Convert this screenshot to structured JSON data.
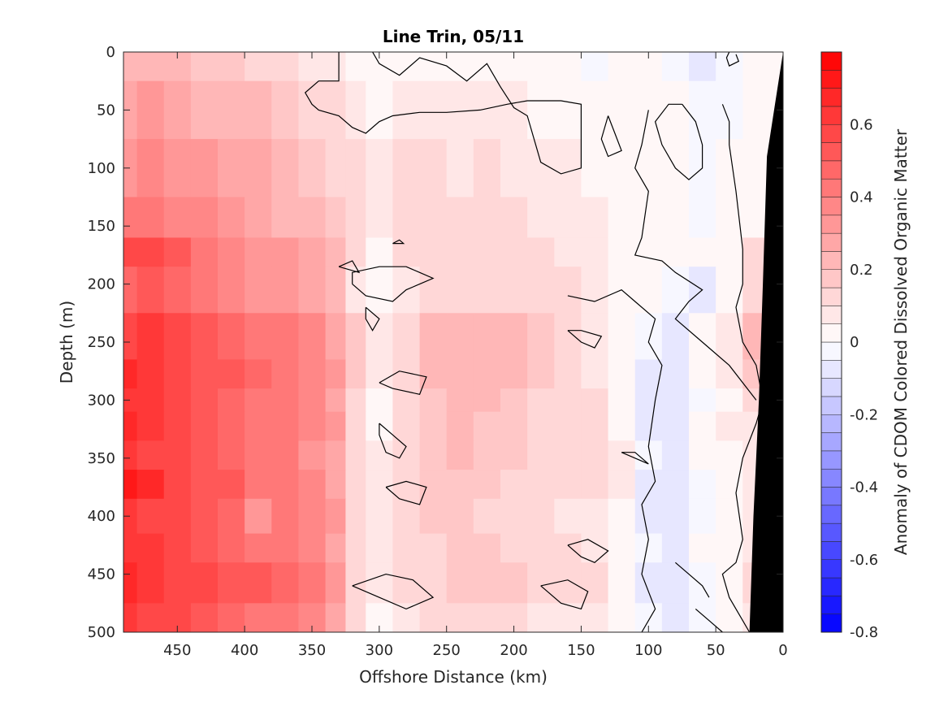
{
  "chart_data": {
    "type": "heatmap",
    "title": "Line Trin, 05/11",
    "xlabel": "Offshore Distance (km)",
    "ylabel": "Depth (m)",
    "colorbar_label": "Anomaly of CDOM Colored Dissolved Organic Matter",
    "xlim": [
      490,
      0
    ],
    "ylim": [
      0,
      500
    ],
    "x_reversed": true,
    "y_reversed": true,
    "x_ticks": [
      450,
      400,
      350,
      300,
      250,
      200,
      150,
      100,
      50,
      0
    ],
    "x_tick_labels": [
      "450",
      "400",
      "350",
      "300",
      "250",
      "200",
      "150",
      "100",
      "50",
      "0"
    ],
    "y_ticks": [
      0,
      50,
      100,
      150,
      200,
      250,
      300,
      350,
      400,
      450,
      500
    ],
    "y_tick_labels": [
      "0",
      "50",
      "100",
      "150",
      "200",
      "250",
      "300",
      "350",
      "400",
      "450",
      "500"
    ],
    "clim": [
      -0.8,
      0.8
    ],
    "colorbar_ticks": [
      0.6,
      0.4,
      0.2,
      0,
      -0.2,
      -0.4,
      -0.6,
      -0.8
    ],
    "colorbar_tick_labels": [
      "0.6",
      "0.4",
      "0.2",
      "0",
      "-0.2",
      "-0.4",
      "-0.6",
      "-0.8"
    ],
    "colorbar_levels": 32,
    "colormap": {
      "low": "#0000ff",
      "mid": "#ffffff",
      "high": "#ff0000"
    },
    "x_nodes": [
      490,
      470,
      450,
      430,
      410,
      390,
      370,
      350,
      330,
      320,
      300,
      280,
      260,
      240,
      220,
      200,
      180,
      160,
      140,
      120,
      100,
      80,
      60,
      40,
      20,
      0
    ],
    "depth_nodes": [
      0,
      50,
      100,
      150,
      170,
      200,
      250,
      280,
      300,
      320,
      350,
      370,
      400,
      430,
      450,
      500
    ],
    "anomaly_grid": [
      [
        0.22,
        0.24,
        0.22,
        0.18,
        0.15,
        0.13,
        0.1,
        0.08,
        0.06,
        0.03,
        0.0,
        0.0,
        0.0,
        0.0,
        0.0,
        0.0,
        0.0,
        0.0,
        -0.02,
        0.0,
        0.0,
        -0.02,
        -0.06,
        -0.04,
        0.0,
        0.0
      ],
      [
        0.28,
        0.3,
        0.28,
        0.24,
        0.22,
        0.2,
        0.18,
        0.14,
        0.1,
        0.06,
        0.03,
        0.06,
        0.06,
        0.05,
        0.06,
        0.05,
        0.04,
        0.02,
        0.0,
        0.0,
        0.0,
        0.02,
        -0.04,
        -0.02,
        0.0,
        0.0
      ],
      [
        0.34,
        0.36,
        0.32,
        0.3,
        0.27,
        0.25,
        0.22,
        0.18,
        0.14,
        0.1,
        0.07,
        0.1,
        0.1,
        0.09,
        0.1,
        0.09,
        0.08,
        0.06,
        0.04,
        0.0,
        0.0,
        0.02,
        -0.02,
        0.0,
        0.0,
        0.0
      ],
      [
        0.4,
        0.42,
        0.38,
        0.36,
        0.3,
        0.28,
        0.24,
        0.2,
        0.16,
        0.12,
        0.08,
        0.1,
        0.12,
        0.11,
        0.12,
        0.11,
        0.09,
        0.08,
        0.06,
        0.02,
        0.0,
        0.02,
        -0.04,
        0.0,
        0.04,
        0.0
      ],
      [
        0.58,
        0.56,
        0.5,
        0.44,
        0.38,
        0.34,
        0.3,
        0.26,
        0.2,
        0.12,
        0.04,
        0.1,
        0.12,
        0.12,
        0.14,
        0.12,
        0.1,
        0.08,
        0.06,
        0.02,
        0.0,
        0.02,
        0.0,
        0.04,
        0.1,
        0.0
      ],
      [
        0.48,
        0.5,
        0.46,
        0.44,
        0.38,
        0.3,
        0.34,
        0.28,
        0.2,
        0.08,
        0.02,
        0.06,
        0.12,
        0.14,
        0.14,
        0.12,
        0.1,
        0.1,
        0.06,
        0.02,
        0.0,
        -0.04,
        -0.06,
        0.02,
        0.14,
        0.0
      ],
      [
        0.6,
        0.62,
        0.56,
        0.52,
        0.48,
        0.44,
        0.42,
        0.36,
        0.26,
        0.16,
        0.08,
        0.14,
        0.2,
        0.22,
        0.24,
        0.22,
        0.18,
        0.12,
        0.08,
        0.04,
        -0.04,
        -0.06,
        0.0,
        0.08,
        0.22,
        0.0
      ],
      [
        0.66,
        0.64,
        0.58,
        0.54,
        0.5,
        0.46,
        0.44,
        0.38,
        0.3,
        0.18,
        0.06,
        0.14,
        0.2,
        0.2,
        0.22,
        0.2,
        0.16,
        0.1,
        0.08,
        0.04,
        -0.06,
        -0.08,
        0.0,
        0.06,
        0.18,
        0.0
      ],
      [
        0.64,
        0.62,
        0.56,
        0.52,
        0.48,
        0.42,
        0.4,
        0.36,
        0.28,
        0.14,
        0.02,
        0.12,
        0.18,
        0.22,
        0.2,
        0.18,
        0.14,
        0.14,
        0.1,
        0.04,
        -0.08,
        -0.1,
        -0.02,
        0.04,
        0.1,
        0.0
      ],
      [
        0.66,
        0.64,
        0.58,
        0.54,
        0.46,
        0.42,
        0.4,
        0.36,
        0.3,
        0.12,
        0.04,
        0.1,
        0.18,
        0.2,
        0.18,
        0.16,
        0.14,
        0.12,
        0.1,
        0.04,
        -0.06,
        -0.08,
        0.0,
        0.06,
        0.08,
        0.0
      ],
      [
        0.62,
        0.6,
        0.56,
        0.52,
        0.46,
        0.42,
        0.4,
        0.34,
        0.28,
        0.14,
        0.06,
        0.12,
        0.18,
        0.22,
        0.18,
        0.16,
        0.12,
        0.1,
        0.12,
        0.06,
        -0.04,
        -0.06,
        0.0,
        0.04,
        0.06,
        0.0
      ],
      [
        0.7,
        0.66,
        0.6,
        0.54,
        0.5,
        0.44,
        0.42,
        0.36,
        0.28,
        0.14,
        0.06,
        0.1,
        0.16,
        0.18,
        0.16,
        0.14,
        0.12,
        0.1,
        0.14,
        0.06,
        -0.06,
        -0.1,
        -0.02,
        0.04,
        0.08,
        0.0
      ],
      [
        0.62,
        0.6,
        0.56,
        0.52,
        0.48,
        0.34,
        0.4,
        0.36,
        0.3,
        0.12,
        0.06,
        0.1,
        0.16,
        0.16,
        0.14,
        0.12,
        0.1,
        0.08,
        0.06,
        0.04,
        -0.06,
        -0.08,
        -0.02,
        0.04,
        0.06,
        0.0
      ],
      [
        0.64,
        0.62,
        0.58,
        0.54,
        0.48,
        0.44,
        0.4,
        0.36,
        0.28,
        0.12,
        0.06,
        0.1,
        0.14,
        0.16,
        0.16,
        0.14,
        0.12,
        0.1,
        0.08,
        0.04,
        -0.04,
        -0.06,
        0.0,
        0.04,
        0.08,
        0.0
      ],
      [
        0.66,
        0.64,
        0.6,
        0.56,
        0.52,
        0.5,
        0.46,
        0.42,
        0.34,
        0.14,
        0.06,
        0.1,
        0.14,
        0.16,
        0.18,
        0.16,
        0.14,
        0.12,
        0.1,
        0.04,
        -0.06,
        -0.1,
        -0.04,
        0.04,
        0.1,
        0.0
      ],
      [
        0.62,
        0.6,
        0.56,
        0.52,
        0.48,
        0.44,
        0.42,
        0.36,
        0.28,
        0.1,
        0.02,
        0.08,
        0.12,
        0.12,
        0.12,
        0.1,
        0.08,
        0.08,
        0.06,
        0.02,
        -0.04,
        -0.06,
        -0.02,
        0.04,
        0.08,
        0.0
      ]
    ],
    "zero_contours": [
      [
        [
          305,
          0
        ],
        [
          300,
          10
        ],
        [
          285,
          20
        ],
        [
          270,
          5
        ],
        [
          250,
          12
        ],
        [
          235,
          25
        ],
        [
          220,
          10
        ],
        [
          210,
          30
        ],
        [
          200,
          48
        ],
        [
          190,
          55
        ],
        [
          185,
          75
        ],
        [
          180,
          95
        ],
        [
          165,
          105
        ],
        [
          150,
          100
        ],
        [
          150,
          80
        ],
        [
          150,
          45
        ],
        [
          165,
          42
        ],
        [
          190,
          42
        ],
        [
          205,
          45
        ],
        [
          225,
          50
        ],
        [
          250,
          52
        ],
        [
          270,
          52
        ],
        [
          290,
          55
        ],
        [
          300,
          60
        ],
        [
          310,
          70
        ],
        [
          320,
          65
        ],
        [
          330,
          55
        ],
        [
          345,
          50
        ],
        [
          350,
          45
        ],
        [
          355,
          35
        ],
        [
          345,
          25
        ],
        [
          330,
          25
        ],
        [
          330,
          20
        ],
        [
          330,
          10
        ],
        [
          330,
          0
        ]
      ],
      [
        [
          40,
          0
        ],
        [
          42,
          5
        ],
        [
          40,
          12
        ],
        [
          33,
          8
        ],
        [
          35,
          2
        ]
      ],
      [
        [
          45,
          45
        ],
        [
          40,
          60
        ],
        [
          40,
          80
        ],
        [
          35,
          120
        ],
        [
          30,
          170
        ],
        [
          30,
          200
        ],
        [
          35,
          220
        ],
        [
          30,
          250
        ],
        [
          20,
          270
        ],
        [
          15,
          300
        ],
        [
          20,
          320
        ],
        [
          30,
          350
        ],
        [
          35,
          380
        ],
        [
          30,
          420
        ],
        [
          35,
          440
        ],
        [
          45,
          450
        ],
        [
          40,
          470
        ],
        [
          30,
          490
        ],
        [
          25,
          500
        ]
      ],
      [
        [
          100,
          50
        ],
        [
          105,
          80
        ],
        [
          110,
          100
        ],
        [
          100,
          120
        ],
        [
          105,
          160
        ],
        [
          110,
          175
        ],
        [
          90,
          180
        ],
        [
          80,
          190
        ],
        [
          60,
          205
        ],
        [
          70,
          215
        ],
        [
          80,
          230
        ],
        [
          60,
          250
        ],
        [
          40,
          270
        ],
        [
          20,
          300
        ]
      ],
      [
        [
          75,
          45
        ],
        [
          65,
          60
        ],
        [
          60,
          80
        ],
        [
          60,
          100
        ],
        [
          70,
          110
        ],
        [
          80,
          100
        ],
        [
          90,
          80
        ],
        [
          95,
          60
        ],
        [
          85,
          45
        ],
        [
          75,
          45
        ]
      ],
      [
        [
          130,
          55
        ],
        [
          125,
          70
        ],
        [
          120,
          85
        ],
        [
          130,
          90
        ],
        [
          135,
          75
        ],
        [
          130,
          55
        ]
      ],
      [
        [
          160,
          210
        ],
        [
          140,
          215
        ],
        [
          120,
          205
        ],
        [
          110,
          215
        ],
        [
          95,
          230
        ],
        [
          100,
          250
        ],
        [
          90,
          270
        ],
        [
          95,
          300
        ],
        [
          100,
          340
        ],
        [
          95,
          370
        ],
        [
          105,
          390
        ],
        [
          100,
          420
        ],
        [
          105,
          450
        ],
        [
          95,
          480
        ],
        [
          105,
          500
        ]
      ],
      [
        [
          320,
          200
        ],
        [
          310,
          210
        ],
        [
          290,
          215
        ],
        [
          280,
          205
        ],
        [
          270,
          200
        ],
        [
          260,
          195
        ],
        [
          270,
          190
        ],
        [
          280,
          185
        ],
        [
          300,
          185
        ],
        [
          320,
          190
        ],
        [
          320,
          200
        ]
      ],
      [
        [
          310,
          220
        ],
        [
          300,
          230
        ],
        [
          305,
          240
        ],
        [
          310,
          230
        ],
        [
          310,
          220
        ]
      ],
      [
        [
          300,
          285
        ],
        [
          290,
          290
        ],
        [
          270,
          295
        ],
        [
          265,
          280
        ],
        [
          285,
          275
        ],
        [
          300,
          285
        ]
      ],
      [
        [
          300,
          320
        ],
        [
          290,
          330
        ],
        [
          280,
          340
        ],
        [
          285,
          350
        ],
        [
          295,
          345
        ],
        [
          300,
          330
        ],
        [
          300,
          320
        ]
      ],
      [
        [
          295,
          375
        ],
        [
          285,
          385
        ],
        [
          270,
          390
        ],
        [
          265,
          375
        ],
        [
          280,
          370
        ],
        [
          295,
          375
        ]
      ],
      [
        [
          320,
          460
        ],
        [
          300,
          470
        ],
        [
          280,
          480
        ],
        [
          260,
          470
        ],
        [
          275,
          455
        ],
        [
          295,
          450
        ],
        [
          320,
          460
        ]
      ],
      [
        [
          160,
          240
        ],
        [
          150,
          250
        ],
        [
          140,
          255
        ],
        [
          135,
          245
        ],
        [
          150,
          240
        ],
        [
          160,
          240
        ]
      ],
      [
        [
          120,
          345
        ],
        [
          110,
          350
        ],
        [
          100,
          355
        ],
        [
          110,
          345
        ],
        [
          120,
          345
        ]
      ],
      [
        [
          160,
          425
        ],
        [
          150,
          435
        ],
        [
          140,
          440
        ],
        [
          130,
          430
        ],
        [
          145,
          420
        ],
        [
          160,
          425
        ]
      ],
      [
        [
          180,
          460
        ],
        [
          165,
          475
        ],
        [
          150,
          480
        ],
        [
          145,
          465
        ],
        [
          160,
          455
        ],
        [
          180,
          460
        ]
      ],
      [
        [
          290,
          165
        ],
        [
          285,
          162
        ],
        [
          282,
          165
        ],
        [
          290,
          165
        ]
      ],
      [
        [
          330,
          185
        ],
        [
          320,
          180
        ],
        [
          315,
          190
        ],
        [
          330,
          185
        ]
      ],
      [
        [
          65,
          480
        ],
        [
          55,
          490
        ],
        [
          45,
          500
        ]
      ],
      [
        [
          80,
          440
        ],
        [
          70,
          450
        ],
        [
          60,
          460
        ],
        [
          55,
          470
        ]
      ]
    ],
    "seafloor_polygon": [
      [
        0,
        0
      ],
      [
        8,
        60
      ],
      [
        12,
        90
      ],
      [
        15,
        200
      ],
      [
        18,
        300
      ],
      [
        22,
        400
      ],
      [
        25,
        500
      ],
      [
        0,
        500
      ]
    ],
    "seafloor_color": "#000000"
  }
}
